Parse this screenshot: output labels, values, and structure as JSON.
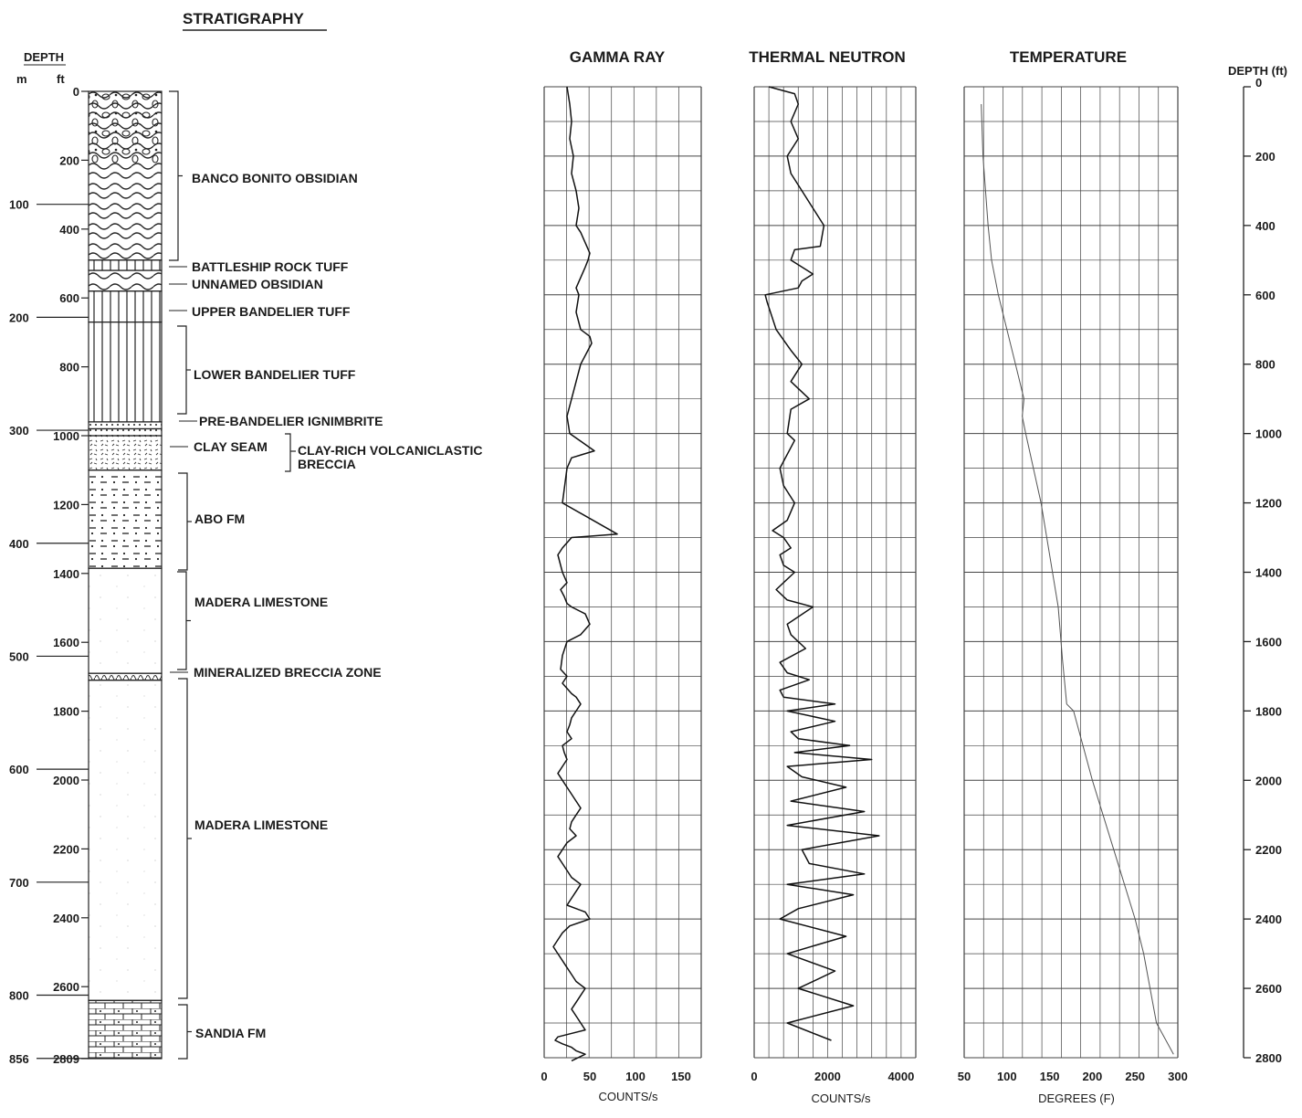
{
  "stratigraphy": {
    "title": "STRATIGRAPHY",
    "depth_header": "DEPTH",
    "unit_m": "m",
    "unit_ft": "ft",
    "ft_ticks": [
      "0",
      "200",
      "400",
      "600",
      "800",
      "1000",
      "1200",
      "1400",
      "1600",
      "1800",
      "2000",
      "2200",
      "2400",
      "2600",
      "2809"
    ],
    "m_ticks": [
      "100",
      "200",
      "300",
      "400",
      "500",
      "600",
      "700",
      "800",
      "856"
    ],
    "units": [
      {
        "name": "BANCO BONITO OBSIDIAN",
        "top_ft": 0,
        "base_ft": 490,
        "pattern": "obsidian"
      },
      {
        "name": "BATTLESHIP ROCK TUFF",
        "top_ft": 490,
        "base_ft": 520,
        "pattern": "tuff"
      },
      {
        "name": "UNNAMED OBSIDIAN",
        "top_ft": 520,
        "base_ft": 580,
        "pattern": "obsidian"
      },
      {
        "name": "UPPER BANDELIER TUFF",
        "top_ft": 580,
        "base_ft": 670,
        "pattern": "tuff"
      },
      {
        "name": "LOWER BANDELIER TUFF",
        "top_ft": 670,
        "base_ft": 960,
        "pattern": "tuff"
      },
      {
        "name": "PRE-BANDELIER IGNIMBRITE",
        "top_ft": 960,
        "base_ft": 980,
        "pattern": "dots"
      },
      {
        "name": "CLAY SEAM",
        "top_ft": 980,
        "base_ft": 1000,
        "pattern": "clay"
      },
      {
        "name": "CLAY-RICH VOLCANICLASTIC BRECCIA",
        "top_ft": 1000,
        "base_ft": 1100,
        "pattern": "breccia"
      },
      {
        "name": "ABO FM",
        "top_ft": 1100,
        "base_ft": 1385,
        "pattern": "shale"
      },
      {
        "name": "MADERA LIMESTONE",
        "top_ft": 1385,
        "base_ft": 1690,
        "pattern": "limestone"
      },
      {
        "name": "MINERALIZED BRECCIA ZONE",
        "top_ft": 1690,
        "base_ft": 1710,
        "pattern": "mineral"
      },
      {
        "name": "MADERA LIMESTONE",
        "top_ft": 1710,
        "base_ft": 2640,
        "pattern": "limestone"
      },
      {
        "name": "SANDIA FM",
        "top_ft": 2640,
        "base_ft": 2809,
        "pattern": "sandia"
      }
    ],
    "labels": [
      "BANCO BONITO OBSIDIAN",
      "BATTLESHIP ROCK TUFF",
      "UNNAMED OBSIDIAN",
      "UPPER BANDELIER TUFF",
      "LOWER BANDELIER TUFF",
      "PRE-BANDELIER IGNIMBRITE",
      "CLAY SEAM",
      "CLAY-RICH VOLCANICLASTIC",
      "BRECCIA",
      "ABO FM",
      "MADERA LIMESTONE",
      "MINERALIZED BRECCIA ZONE",
      "MADERA LIMESTONE",
      "SANDIA FM"
    ]
  },
  "logs": {
    "gamma": {
      "title": "GAMMA RAY",
      "xlabel": "COUNTS/s",
      "ticks": [
        "0",
        "50",
        "100",
        "150"
      ]
    },
    "neutron": {
      "title": "THERMAL NEUTRON",
      "xlabel": "COUNTS/s",
      "ticks": [
        "0",
        "2000",
        "4000"
      ]
    },
    "temperature": {
      "title": "TEMPERATURE",
      "xlabel": "DEGREES (F)",
      "ticks": [
        "50",
        "100",
        "150",
        "200",
        "250",
        "300"
      ]
    }
  },
  "depth_axis": {
    "title": "DEPTH (ft)",
    "ticks": [
      "0",
      "200",
      "400",
      "600",
      "800",
      "1000",
      "1200",
      "1400",
      "1600",
      "1800",
      "2000",
      "2200",
      "2400",
      "2600",
      "2800"
    ]
  },
  "chart_data": [
    {
      "type": "line",
      "title": "GAMMA RAY",
      "xlabel": "COUNTS/s",
      "ylabel": "DEPTH (ft)",
      "xlim": [
        0,
        150
      ],
      "ylim": [
        2800,
        0
      ],
      "series": [
        {
          "x": [
            25,
            28,
            30,
            28,
            32,
            30,
            35,
            38,
            35,
            40,
            45,
            50,
            48,
            45,
            40,
            35,
            38,
            35,
            40,
            50,
            52,
            48,
            40,
            35,
            30,
            28,
            25,
            28,
            55,
            30,
            25,
            20,
            80,
            30,
            20,
            15,
            20,
            25,
            18,
            22,
            25,
            30,
            45,
            50,
            40,
            25,
            20,
            18,
            25,
            20,
            30,
            35,
            40,
            35,
            30,
            28,
            25,
            30,
            20,
            22,
            25,
            20,
            15,
            20,
            25,
            30,
            35,
            40,
            35,
            30,
            28,
            35,
            25,
            20,
            15,
            20,
            25,
            30,
            40,
            35,
            30,
            25,
            45,
            50,
            28,
            20,
            15,
            10,
            15,
            20,
            25,
            30,
            35,
            45,
            40,
            35,
            30,
            35,
            40,
            45,
            15,
            12,
            20,
            30,
            35,
            45,
            30
          ],
          "y": [
            0,
            50,
            100,
            150,
            200,
            250,
            300,
            350,
            400,
            420,
            450,
            480,
            500,
            520,
            550,
            580,
            600,
            650,
            700,
            720,
            740,
            760,
            800,
            850,
            900,
            920,
            950,
            1000,
            1050,
            1070,
            1100,
            1200,
            1290,
            1300,
            1330,
            1350,
            1400,
            1430,
            1450,
            1470,
            1490,
            1500,
            1520,
            1550,
            1580,
            1600,
            1640,
            1680,
            1700,
            1720,
            1750,
            1760,
            1780,
            1800,
            1820,
            1840,
            1860,
            1880,
            1900,
            1920,
            1940,
            1960,
            1980,
            2000,
            2020,
            2040,
            2060,
            2080,
            2100,
            2120,
            2140,
            2160,
            2180,
            2200,
            2220,
            2240,
            2260,
            2280,
            2300,
            2320,
            2340,
            2360,
            2380,
            2400,
            2420,
            2440,
            2460,
            2480,
            2500,
            2520,
            2540,
            2560,
            2580,
            2600,
            2620,
            2640,
            2660,
            2680,
            2700,
            2720,
            2740,
            2750,
            2760,
            2770,
            2780,
            2790,
            2809
          ]
        }
      ]
    },
    {
      "type": "line",
      "title": "THERMAL NEUTRON",
      "xlabel": "COUNTS/s",
      "ylabel": "DEPTH (ft)",
      "xlim": [
        0,
        4000
      ],
      "ylim": [
        2800,
        0
      ],
      "series": [
        {
          "x": [
            400,
            1100,
            1200,
            1000,
            1200,
            900,
            1000,
            1300,
            1900,
            1800,
            1100,
            1000,
            1600,
            1300,
            1200,
            300,
            350,
            600,
            1000,
            1300,
            1000,
            1500,
            1000,
            900,
            1100,
            700,
            800,
            1100,
            900,
            500,
            800,
            1000,
            700,
            800,
            1100,
            600,
            900,
            1600,
            900,
            1000,
            1400,
            700,
            900,
            1500,
            700,
            800,
            2200,
            900,
            2200,
            1000,
            1200,
            2600,
            1100,
            3200,
            900,
            1300,
            2500,
            1000,
            3000,
            900,
            3400,
            1300,
            1500,
            3000,
            900,
            2700,
            1200,
            700,
            2500,
            900,
            2200,
            1200,
            2700,
            900,
            2100
          ],
          "y": [
            0,
            20,
            50,
            100,
            150,
            200,
            250,
            300,
            400,
            460,
            470,
            500,
            540,
            560,
            580,
            600,
            620,
            700,
            760,
            800,
            850,
            900,
            930,
            1000,
            1020,
            1100,
            1150,
            1200,
            1250,
            1280,
            1300,
            1330,
            1350,
            1380,
            1400,
            1450,
            1480,
            1500,
            1550,
            1580,
            1620,
            1660,
            1690,
            1710,
            1740,
            1760,
            1780,
            1800,
            1830,
            1860,
            1880,
            1900,
            1920,
            1940,
            1960,
            1990,
            2020,
            2060,
            2090,
            2130,
            2160,
            2200,
            2240,
            2270,
            2300,
            2330,
            2370,
            2400,
            2450,
            2500,
            2550,
            2600,
            2650,
            2700,
            2750
          ]
        }
      ]
    },
    {
      "type": "line",
      "title": "TEMPERATURE",
      "xlabel": "DEGREES (F)",
      "ylabel": "DEPTH (ft)",
      "xlim": [
        50,
        300
      ],
      "ylim": [
        2800,
        0
      ],
      "series": [
        {
          "x": [
            70,
            72,
            75,
            78,
            82,
            90,
            110,
            120,
            118,
            122,
            140,
            160,
            165,
            170,
            178,
            200,
            225,
            250,
            260,
            275,
            295
          ],
          "y": [
            50,
            200,
            300,
            400,
            500,
            600,
            800,
            900,
            950,
            1000,
            1200,
            1500,
            1650,
            1780,
            1800,
            2000,
            2200,
            2400,
            2500,
            2700,
            2790
          ]
        }
      ]
    }
  ]
}
